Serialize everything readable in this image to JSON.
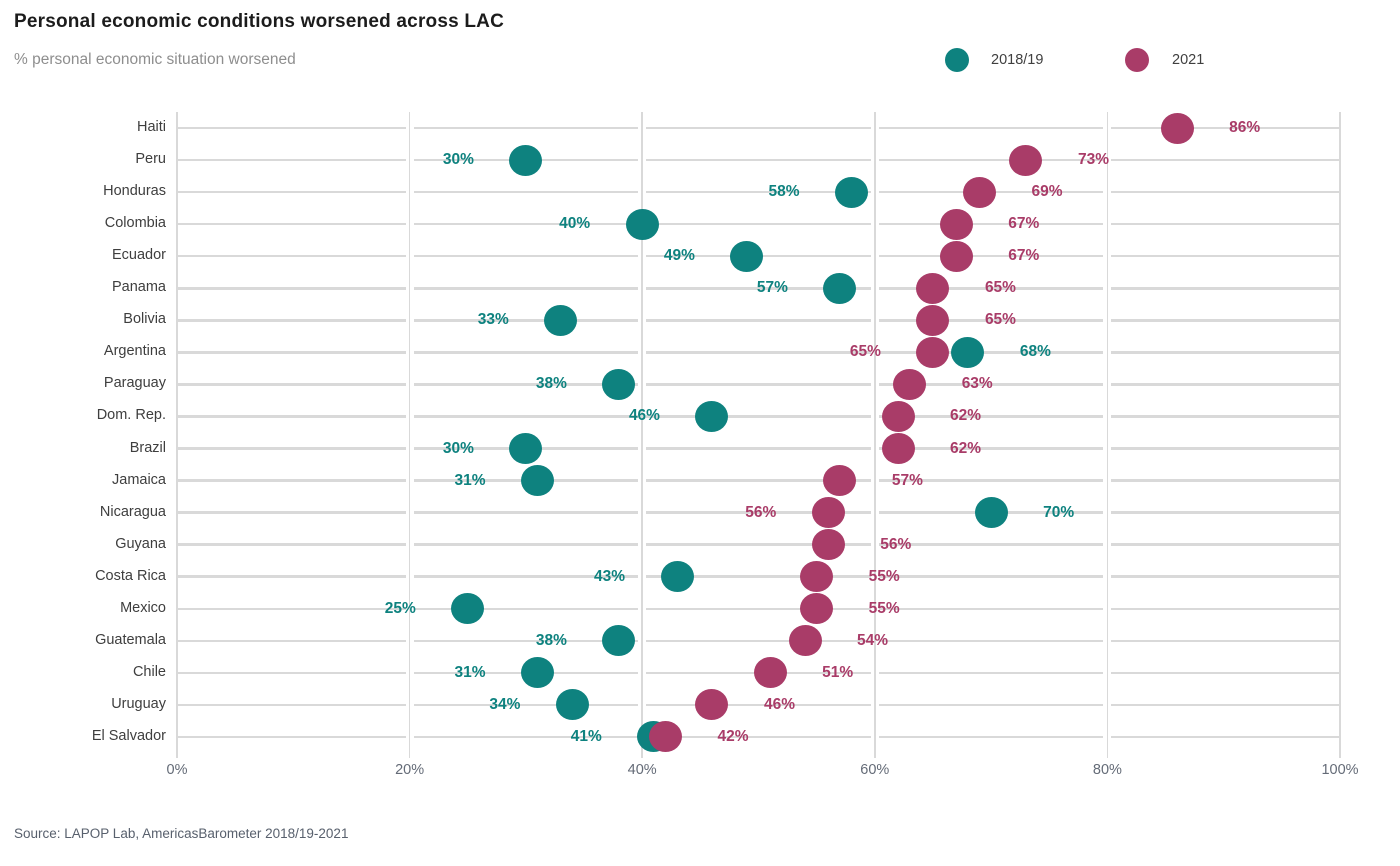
{
  "title": "Personal economic conditions worsened across LAC",
  "subtitle": "% personal economic situation worsened",
  "source": "Source: LAPOP Lab, AmericasBarometer 2018/19-2021",
  "legend": {
    "items": [
      {
        "label": "2018/19",
        "color": "#0e827f"
      },
      {
        "label": "2021",
        "color": "#a93c68"
      }
    ]
  },
  "colors": {
    "series_2018_19": "#0e827f",
    "series_2021": "#a93c68",
    "gridline": "#d9d9d9",
    "title_text": "#1c1c1c",
    "subtitle_text": "#8e8e8e",
    "axis_text": "#646b77"
  },
  "chart_data": {
    "type": "scatter",
    "variant": "horizontal-dot-plot",
    "title": "Personal economic conditions worsened across LAC",
    "subtitle": "% personal economic situation worsened",
    "categories": [
      "Haiti",
      "Peru",
      "Honduras",
      "Colombia",
      "Ecuador",
      "Panama",
      "Bolivia",
      "Argentina",
      "Paraguay",
      "Dom. Rep.",
      "Brazil",
      "Jamaica",
      "Nicaragua",
      "Guyana",
      "Costa Rica",
      "Mexico",
      "Guatemala",
      "Chile",
      "Uruguay",
      "El Salvador"
    ],
    "series": [
      {
        "name": "2018/19",
        "color": "#0e827f",
        "values": [
          null,
          30,
          58,
          40,
          49,
          57,
          33,
          68,
          38,
          46,
          30,
          31,
          70,
          null,
          43,
          25,
          38,
          31,
          34,
          41
        ]
      },
      {
        "name": "2021",
        "color": "#a93c68",
        "values": [
          86,
          73,
          69,
          67,
          67,
          65,
          65,
          65,
          63,
          62,
          62,
          57,
          56,
          56,
          55,
          55,
          54,
          51,
          46,
          42
        ]
      }
    ],
    "value_suffix": "%",
    "xlim": [
      0,
      100
    ],
    "x_ticks": [
      {
        "value": 0,
        "label": "0%"
      },
      {
        "value": 20,
        "label": "20%"
      },
      {
        "value": 40,
        "label": "40%"
      },
      {
        "value": 60,
        "label": "60%"
      },
      {
        "value": 80,
        "label": "80%"
      },
      {
        "value": 100,
        "label": "100%"
      }
    ],
    "grid": true,
    "legend_position": "top-right",
    "data_labels": true
  }
}
